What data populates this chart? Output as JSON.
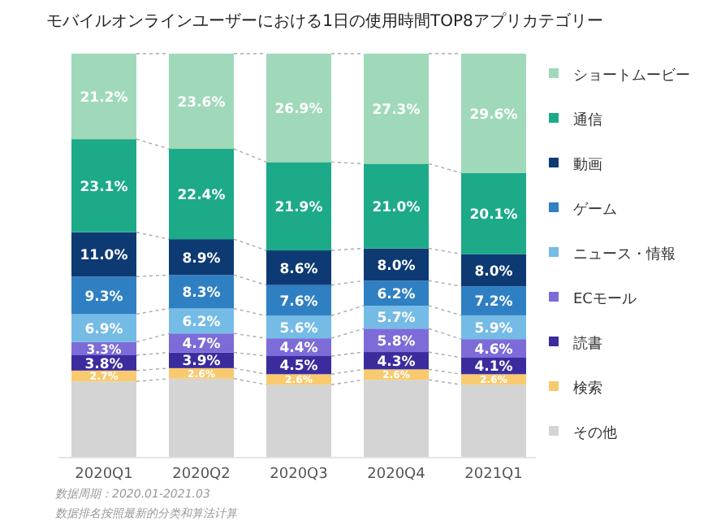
{
  "chart_data": {
    "type": "bar",
    "stacked": true,
    "title": "モバイルオンラインユーザーにおける1日の使用時間TOP8アプリカテゴリー",
    "categories": [
      "2020Q1",
      "2020Q2",
      "2020Q3",
      "2020Q4",
      "2021Q1"
    ],
    "series": [
      {
        "name": "その他",
        "color": "#d4d4d4",
        "values": [
          18.7,
          19.4,
          17.9,
          19.1,
          17.9
        ],
        "value_labels": [
          null,
          null,
          null,
          null,
          null
        ]
      },
      {
        "name": "検索",
        "color": "#f8c96e",
        "values": [
          2.7,
          2.6,
          2.6,
          2.6,
          2.6
        ],
        "value_labels": [
          "2.7%",
          "2.6%",
          "2.6%",
          "2.6%",
          "2.6%"
        ]
      },
      {
        "name": "読書",
        "color": "#3b2c9e",
        "values": [
          3.8,
          3.9,
          4.5,
          4.3,
          4.1
        ],
        "value_labels": [
          "3.8%",
          "3.9%",
          "4.5%",
          "4.3%",
          "4.1%"
        ]
      },
      {
        "name": "ECモール",
        "color": "#7d6bd8",
        "values": [
          3.3,
          4.7,
          4.4,
          5.8,
          4.6
        ],
        "value_labels": [
          "3.3%",
          "4.7%",
          "4.4%",
          "5.8%",
          "4.6%"
        ]
      },
      {
        "name": "ニュース・情報",
        "color": "#74bbe6",
        "values": [
          6.9,
          6.2,
          5.6,
          5.7,
          5.9
        ],
        "value_labels": [
          "6.9%",
          "6.2%",
          "5.6%",
          "5.7%",
          "5.9%"
        ]
      },
      {
        "name": "ゲーム",
        "color": "#2f7fc3",
        "values": [
          9.3,
          8.3,
          7.6,
          6.2,
          7.2
        ],
        "value_labels": [
          "9.3%",
          "8.3%",
          "7.6%",
          "6.2%",
          "7.2%"
        ]
      },
      {
        "name": "動画",
        "color": "#0e3a74",
        "values": [
          11.0,
          8.9,
          8.6,
          8.0,
          8.0
        ],
        "value_labels": [
          "11.0%",
          "8.9%",
          "8.6%",
          "8.0%",
          "8.0%"
        ]
      },
      {
        "name": "通信",
        "color": "#1caa89",
        "values": [
          23.1,
          22.4,
          21.9,
          21.0,
          20.1
        ],
        "value_labels": [
          "23.1%",
          "22.4%",
          "21.9%",
          "21.0%",
          "20.1%"
        ]
      },
      {
        "name": "ショートムービー",
        "color": "#9fd9ba",
        "values": [
          21.2,
          23.6,
          26.9,
          27.3,
          29.6
        ],
        "value_labels": [
          "21.2%",
          "23.6%",
          "26.9%",
          "27.3%",
          "29.6%"
        ]
      }
    ],
    "legend": "right",
    "annotations": [
      "数据周期：2020.01-2021.03",
      "数据排名按照最新的分类和算法计算"
    ]
  }
}
